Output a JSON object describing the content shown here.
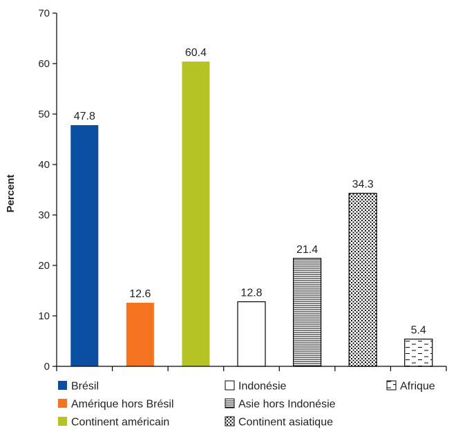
{
  "chart_data": {
    "type": "bar",
    "title": "",
    "xlabel": "",
    "ylabel": "Percent",
    "ylim": [
      0,
      70
    ],
    "yticks": [
      0,
      10,
      20,
      30,
      40,
      50,
      60,
      70
    ],
    "grid": false,
    "legend_position": "bottom",
    "categories": [
      "Brésil",
      "Amérique hors Brésil",
      "Continent américain",
      "Indonésie",
      "Asie hors Indonésie",
      "Continent asiatique",
      "Afrique"
    ],
    "values": [
      47.8,
      12.6,
      60.4,
      12.8,
      21.4,
      34.3,
      5.4
    ],
    "value_labels": [
      "47.8",
      "12.6",
      "60.4",
      "12.8",
      "21.4",
      "34.3",
      "5.4"
    ],
    "fills": [
      "solid",
      "solid",
      "solid",
      "none",
      "horizontal-lines",
      "dots",
      "dashes"
    ],
    "colors": [
      "#0b4fa3",
      "#f47321",
      "#b5c424",
      "#ffffff",
      "#ffffff",
      "#ffffff",
      "#ffffff"
    ]
  }
}
